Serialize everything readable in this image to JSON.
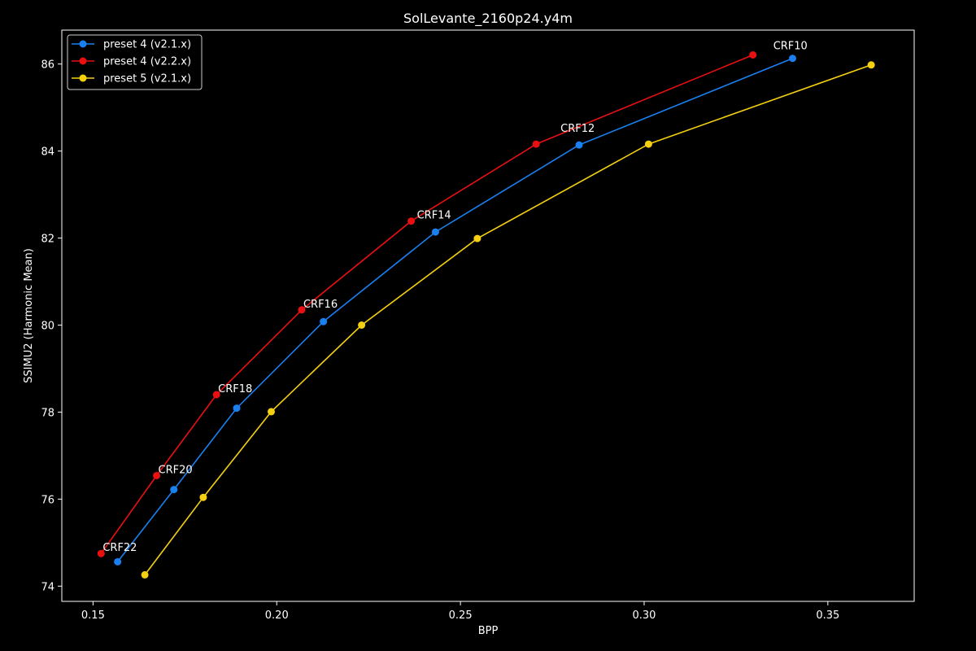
{
  "chart_data": {
    "type": "line",
    "title": "SolLevante_2160p24.y4m",
    "xlabel": "BPP",
    "ylabel": "SSIMU2 (Harmonic Mean)",
    "xlim": [
      0.1415,
      0.3735
    ],
    "ylim": [
      73.65,
      86.78
    ],
    "xticks": [
      0.15,
      0.2,
      0.25,
      0.3,
      0.35
    ],
    "xtick_labels": [
      "0.15",
      "0.20",
      "0.25",
      "0.30",
      "0.35"
    ],
    "yticks": [
      74,
      76,
      78,
      80,
      82,
      84,
      86
    ],
    "ytick_labels": [
      "74",
      "76",
      "78",
      "80",
      "82",
      "84",
      "86"
    ],
    "grid": false,
    "legend_position": "top-left",
    "series": [
      {
        "name": "preset 4 (v2.1.x)",
        "color": "#1a80f0",
        "points": [
          {
            "x": 0.1567,
            "y": 74.56
          },
          {
            "x": 0.172,
            "y": 76.22
          },
          {
            "x": 0.1891,
            "y": 78.09
          },
          {
            "x": 0.2127,
            "y": 80.08
          },
          {
            "x": 0.2432,
            "y": 82.14
          },
          {
            "x": 0.2823,
            "y": 84.14
          },
          {
            "x": 0.3404,
            "y": 86.13
          }
        ]
      },
      {
        "name": "preset 4 (v2.2.x)",
        "color": "#e81010",
        "points": [
          {
            "x": 0.1522,
            "y": 74.75
          },
          {
            "x": 0.1673,
            "y": 76.54
          },
          {
            "x": 0.1836,
            "y": 78.4
          },
          {
            "x": 0.2068,
            "y": 80.35
          },
          {
            "x": 0.2366,
            "y": 82.39
          },
          {
            "x": 0.2706,
            "y": 84.16
          },
          {
            "x": 0.3296,
            "y": 86.21
          }
        ]
      },
      {
        "name": "preset 5 (v2.1.x)",
        "color": "#f5d010",
        "points": [
          {
            "x": 0.1641,
            "y": 74.26
          },
          {
            "x": 0.18,
            "y": 76.04
          },
          {
            "x": 0.1985,
            "y": 78.01
          },
          {
            "x": 0.2231,
            "y": 80.0
          },
          {
            "x": 0.2546,
            "y": 81.99
          },
          {
            "x": 0.3012,
            "y": 84.16
          },
          {
            "x": 0.3618,
            "y": 85.98
          }
        ]
      }
    ],
    "annotations": [
      {
        "text": "CRF22",
        "x": 0.1522,
        "y": 74.75
      },
      {
        "text": "CRF20",
        "x": 0.1673,
        "y": 76.54
      },
      {
        "text": "CRF18",
        "x": 0.1836,
        "y": 78.4
      },
      {
        "text": "CRF16",
        "x": 0.2068,
        "y": 80.35
      },
      {
        "text": "CRF14",
        "x": 0.2366,
        "y": 82.39
      },
      {
        "text": "CRF12",
        "x": 0.2706,
        "y": 84.16
      },
      {
        "text": "CRF10",
        "x": 0.3296,
        "y": 86.21
      }
    ]
  }
}
